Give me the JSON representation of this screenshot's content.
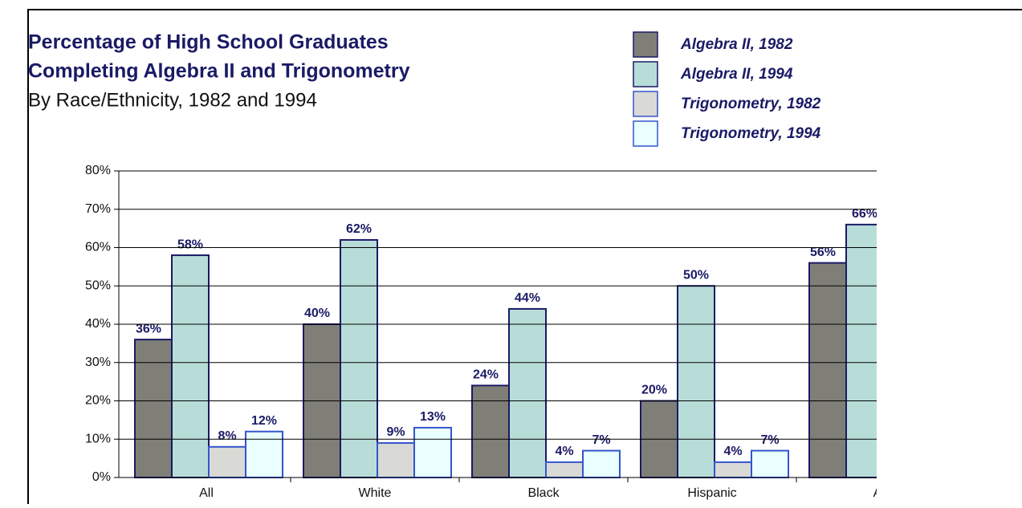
{
  "chart_data": {
    "type": "bar",
    "title_lines": [
      "Percentage of High School Graduates",
      "Completing Algebra II and Trigonometry"
    ],
    "subtitle": "By Race/Ethnicity, 1982 and 1994",
    "categories": [
      "All",
      "White",
      "Black",
      "Hispanic",
      "As"
    ],
    "series": [
      {
        "name": "Algebra II, 1982",
        "color": "#7f7f78",
        "edge": "#1a1a66",
        "values": [
          36,
          40,
          24,
          20,
          56
        ],
        "value_labels": [
          "36%",
          "40%",
          "24%",
          "20%",
          "56%"
        ]
      },
      {
        "name": "Algebra II, 1994",
        "color": "#b8ddd9",
        "edge": "#1a1a66",
        "values": [
          58,
          62,
          44,
          50,
          66
        ],
        "value_labels": [
          "58%",
          "62%",
          "44%",
          "50%",
          "66%"
        ]
      },
      {
        "name": "Trigonometry, 1982",
        "color": "#d9d9d6",
        "edge": "#3355cc",
        "values": [
          8,
          9,
          4,
          4,
          null
        ],
        "value_labels": [
          "8%",
          "9%",
          "4%",
          "4%",
          null
        ]
      },
      {
        "name": "Trigonometry, 1994",
        "color": "#eaffff",
        "edge": "#3355cc",
        "values": [
          12,
          13,
          7,
          7,
          null
        ],
        "value_labels": [
          "12%",
          "13%",
          "7%",
          "7%",
          null
        ]
      }
    ],
    "ylim": [
      0,
      80
    ],
    "yticks": [
      {
        "value": 0,
        "label": "0%"
      },
      {
        "value": 10,
        "label": "10%"
      },
      {
        "value": 20,
        "label": "20%"
      },
      {
        "value": 30,
        "label": "30%"
      },
      {
        "value": 40,
        "label": "40%"
      },
      {
        "value": 50,
        "label": "50%"
      },
      {
        "value": 60,
        "label": "60%"
      },
      {
        "value": 70,
        "label": "70%"
      },
      {
        "value": 80,
        "label": "80%"
      }
    ],
    "grid": true
  }
}
